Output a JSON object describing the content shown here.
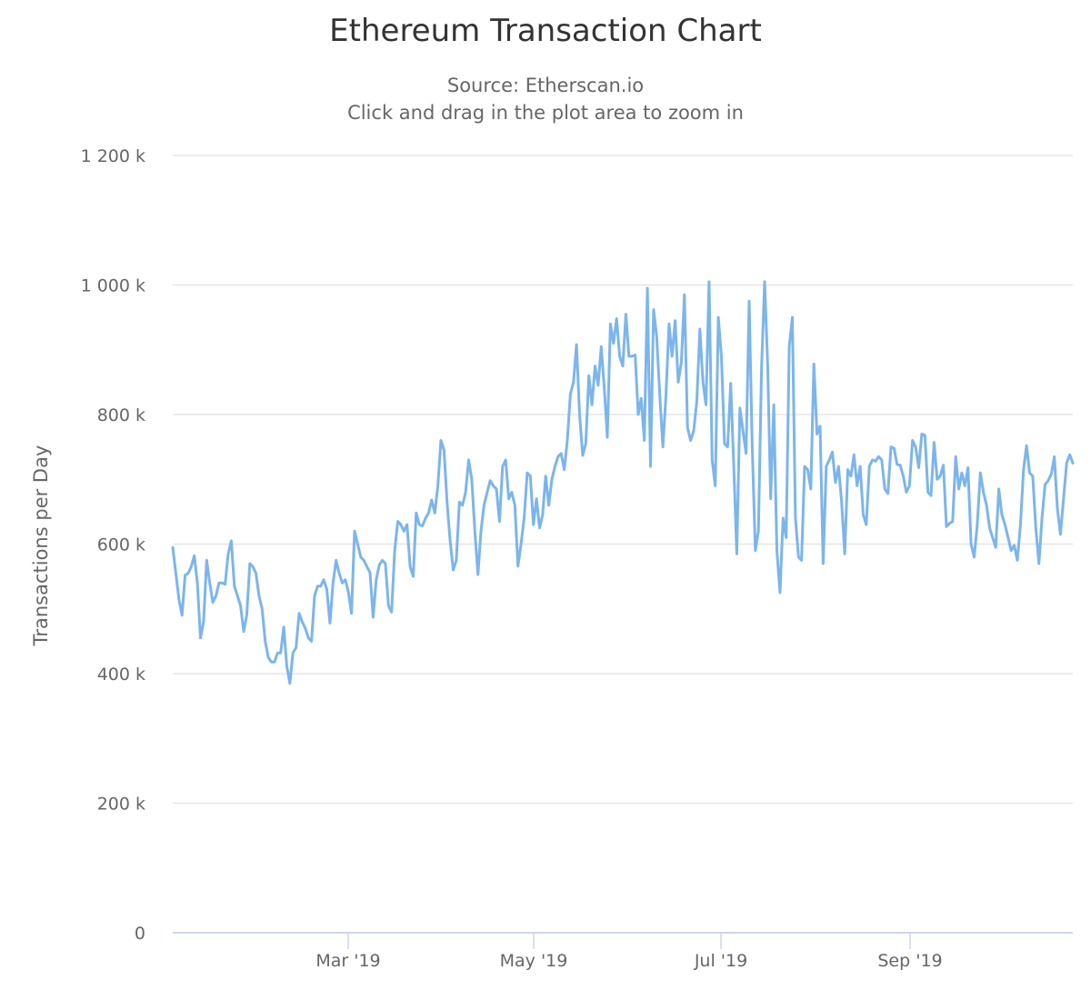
{
  "header": {
    "title": "Ethereum Transaction Chart",
    "subtitle": "Source: Etherscan.io",
    "hint": "Click and drag in the plot area to zoom in"
  },
  "colors": {
    "series": "#7cb5ec",
    "grid": "#e6e6e6",
    "axis_line": "#ccd6eb",
    "text": "#666666",
    "title": "#333333"
  },
  "chart_data": {
    "type": "line",
    "title": "Ethereum Transaction Chart",
    "subtitle": "Source: Etherscan.io",
    "annotation": "Click and drag in the plot area to zoom in",
    "xlabel": "",
    "ylabel": "Transactions per Day",
    "ylim": [
      0,
      1200000
    ],
    "yticks": [
      0,
      200000,
      400000,
      600000,
      800000,
      1000000,
      1200000
    ],
    "ytick_labels": [
      "0",
      "200 k",
      "400 k",
      "600 k",
      "800 k",
      "1 000 k",
      "1 200 k"
    ],
    "xtick_labels": [
      "Mar '19",
      "May '19",
      "Jul '19",
      "Sep '19"
    ],
    "x_start": "2019-01-02",
    "x_step": "1 day",
    "grid": true,
    "legend": "none",
    "series": [
      {
        "name": "Transactions per Day",
        "unit": "thousands",
        "values": [
          595,
          555,
          515,
          490,
          552,
          555,
          565,
          582,
          540,
          455,
          480,
          575,
          540,
          510,
          520,
          540,
          540,
          538,
          585,
          605,
          535,
          520,
          505,
          465,
          490,
          570,
          565,
          555,
          520,
          500,
          450,
          425,
          418,
          418,
          432,
          432,
          472,
          412,
          385,
          432,
          440,
          493,
          480,
          470,
          455,
          450,
          520,
          535,
          535,
          545,
          530,
          478,
          540,
          575,
          555,
          540,
          545,
          525,
          493,
          620,
          600,
          580,
          575,
          565,
          556,
          487,
          545,
          568,
          575,
          570,
          505,
          495,
          590,
          635,
          630,
          620,
          630,
          565,
          550,
          648,
          630,
          628,
          640,
          648,
          668,
          648,
          690,
          760,
          745,
          665,
          605,
          560,
          575,
          665,
          660,
          680,
          730,
          700,
          620,
          553,
          620,
          660,
          680,
          698,
          690,
          685,
          635,
          720,
          730,
          670,
          680,
          660,
          566,
          600,
          640,
          710,
          705,
          630,
          670,
          625,
          645,
          705,
          660,
          700,
          720,
          735,
          740,
          715,
          760,
          832,
          850,
          908,
          800,
          737,
          755,
          860,
          815,
          875,
          845,
          905,
          840,
          765,
          940,
          910,
          948,
          890,
          875,
          955,
          890,
          890,
          892,
          800,
          825,
          760,
          995,
          720,
          962,
          920,
          830,
          750,
          830,
          940,
          890,
          945,
          850,
          880,
          985,
          780,
          760,
          775,
          820,
          932,
          850,
          815,
          1005,
          730,
          690,
          950,
          890,
          755,
          750,
          848,
          720,
          585,
          810,
          775,
          740,
          975,
          750,
          590,
          620,
          870,
          1005,
          880,
          670,
          815,
          590,
          525,
          640,
          610,
          905,
          950,
          640,
          580,
          575,
          720,
          715,
          685,
          878,
          770,
          782,
          570,
          720,
          730,
          742,
          695,
          720,
          665,
          585,
          715,
          705,
          738,
          690,
          720,
          645,
          630,
          720,
          730,
          728,
          735,
          730,
          685,
          678,
          750,
          748,
          723,
          722,
          705,
          680,
          690,
          760,
          750,
          718,
          770,
          768,
          680,
          675,
          757,
          700,
          705,
          722,
          627,
          632,
          635,
          735,
          685,
          710,
          690,
          718,
          600,
          580,
          630,
          710,
          680,
          660,
          625,
          610,
          595,
          685,
          645,
          630,
          610,
          590,
          598,
          575,
          630,
          715,
          752,
          710,
          705,
          625,
          570,
          640,
          692,
          698,
          708,
          735,
          655,
          615,
          670,
          725,
          738,
          725
        ]
      }
    ]
  }
}
